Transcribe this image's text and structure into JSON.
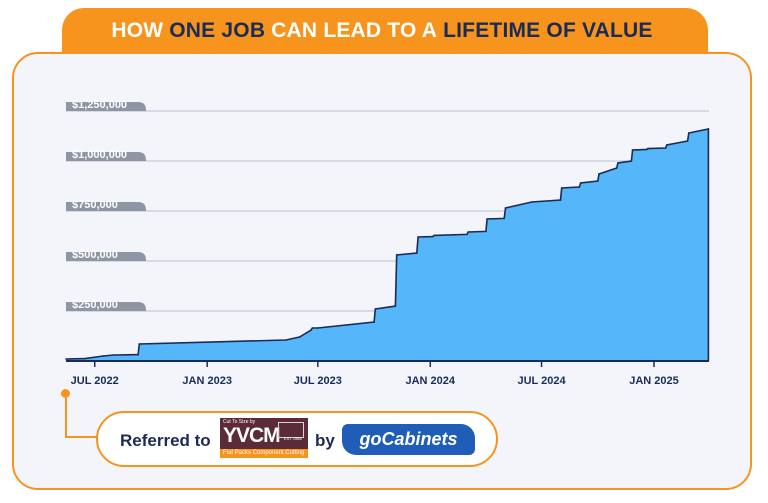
{
  "banner": {
    "part1": "HOW",
    "part2": "ONE JOB",
    "part3": "CAN LEAD TO A",
    "part4": "LIFETIME OF VALUE"
  },
  "referral": {
    "prefix": "Referred to",
    "middle": "by",
    "yvcm_tagline": "Cut To Size by",
    "yvcm_name": "YVCM",
    "yvcm_est": "EST 1986",
    "yvcm_strip": "Flat Packs Component Cutting",
    "gocabinets_label": "goCabinets"
  },
  "colors": {
    "accent": "#f7941d",
    "navy": "#1a2b57",
    "area_fill": "#56b6fa",
    "area_stroke": "#1a2b57",
    "tick_pill": "#8e96a4",
    "gocabinets_blue": "#1f5db8",
    "yvcm_maroon": "#5b2b38"
  },
  "chart_data": {
    "type": "area",
    "title": "",
    "xlabel": "",
    "ylabel": "",
    "ylim": [
      0,
      1250000
    ],
    "xlim": [
      "2022-05-15",
      "2025-04-01"
    ],
    "yticks": [
      {
        "value": 250000,
        "label": "$250,000"
      },
      {
        "value": 500000,
        "label": "$500,000"
      },
      {
        "value": 750000,
        "label": "$750,000"
      },
      {
        "value": 1000000,
        "label": "$1,000,000"
      },
      {
        "value": 1250000,
        "label": "$1,250,000"
      }
    ],
    "xticks": [
      {
        "date": "2022-07-01",
        "label": "JUL 2022"
      },
      {
        "date": "2023-01-01",
        "label": "JAN 2023"
      },
      {
        "date": "2023-07-01",
        "label": "JUL 2023"
      },
      {
        "date": "2024-01-01",
        "label": "JAN 2024"
      },
      {
        "date": "2024-07-01",
        "label": "JUL 2024"
      },
      {
        "date": "2025-01-01",
        "label": "JAN 2025"
      }
    ],
    "grid": "horizontal",
    "series": [
      {
        "points": [
          [
            "2022-05-15",
            10000
          ],
          [
            "2022-06-15",
            12000
          ],
          [
            "2022-07-15",
            25000
          ],
          [
            "2022-08-01",
            30000
          ],
          [
            "2022-09-10",
            32000
          ],
          [
            "2022-09-12",
            85000
          ],
          [
            "2023-05-10",
            105000
          ],
          [
            "2023-06-01",
            120000
          ],
          [
            "2023-06-20",
            155000
          ],
          [
            "2023-06-22",
            165000
          ],
          [
            "2023-07-01",
            165000
          ],
          [
            "2023-10-01",
            195000
          ],
          [
            "2023-10-03",
            260000
          ],
          [
            "2023-11-05",
            275000
          ],
          [
            "2023-11-07",
            530000
          ],
          [
            "2023-12-10",
            540000
          ],
          [
            "2023-12-12",
            620000
          ],
          [
            "2024-01-05",
            622000
          ],
          [
            "2024-01-07",
            628000
          ],
          [
            "2024-03-01",
            633000
          ],
          [
            "2024-03-03",
            645000
          ],
          [
            "2024-04-01",
            648000
          ],
          [
            "2024-04-03",
            710000
          ],
          [
            "2024-05-01",
            713000
          ],
          [
            "2024-05-03",
            765000
          ],
          [
            "2024-06-15",
            795000
          ],
          [
            "2024-08-01",
            805000
          ],
          [
            "2024-08-03",
            865000
          ],
          [
            "2024-09-01",
            870000
          ],
          [
            "2024-09-03",
            890000
          ],
          [
            "2024-10-01",
            900000
          ],
          [
            "2024-10-03",
            935000
          ],
          [
            "2024-11-01",
            965000
          ],
          [
            "2024-11-03",
            990000
          ],
          [
            "2024-11-25",
            1000000
          ],
          [
            "2024-11-27",
            1055000
          ],
          [
            "2024-12-20",
            1058000
          ],
          [
            "2024-12-22",
            1062000
          ],
          [
            "2025-01-20",
            1065000
          ],
          [
            "2025-01-22",
            1080000
          ],
          [
            "2025-02-25",
            1100000
          ],
          [
            "2025-02-27",
            1140000
          ],
          [
            "2025-03-31",
            1160000
          ]
        ]
      }
    ]
  }
}
